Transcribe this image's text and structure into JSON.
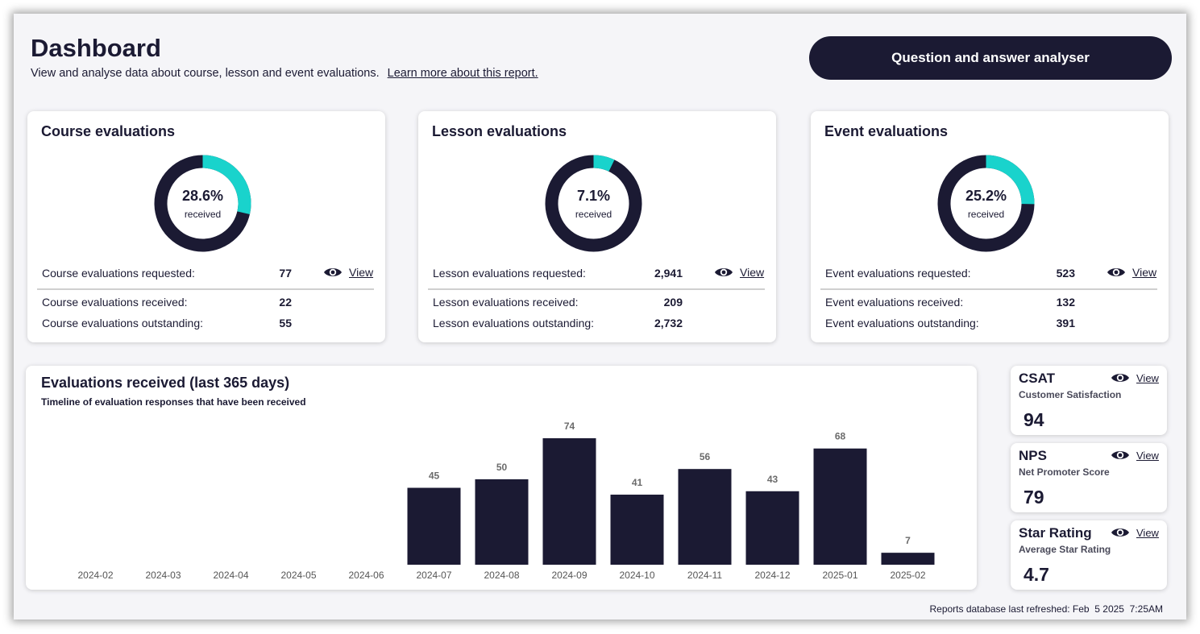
{
  "header": {
    "title": "Dashboard",
    "subtitle": "View and analyse data about course, lesson and event evaluations.",
    "learn_more": "Learn more about this report.",
    "qa_button": "Question and answer analyser"
  },
  "colors": {
    "navy": "#1b1a33",
    "accent": "#19d3cc"
  },
  "eval_cards": [
    {
      "title": "Course evaluations",
      "percent": "28.6%",
      "received_label": "received",
      "fraction": 0.286,
      "requested_label": "Course evaluations requested:",
      "requested": "77",
      "received_row_label": "Course evaluations received:",
      "received": "22",
      "outstanding_label": "Course evaluations outstanding:",
      "outstanding": "55",
      "view": "View"
    },
    {
      "title": "Lesson evaluations",
      "percent": "7.1%",
      "received_label": "received",
      "fraction": 0.071,
      "requested_label": "Lesson evaluations requested:",
      "requested": "2,941",
      "received_row_label": "Lesson evaluations received:",
      "received": "209",
      "outstanding_label": "Lesson evaluations outstanding:",
      "outstanding": "2,732",
      "view": "View"
    },
    {
      "title": "Event evaluations",
      "percent": "25.2%",
      "received_label": "received",
      "fraction": 0.252,
      "requested_label": "Event evaluations requested:",
      "requested": "523",
      "received_row_label": "Event evaluations received:",
      "received": "132",
      "outstanding_label": "Event evaluations outstanding:",
      "outstanding": "391",
      "view": "View"
    }
  ],
  "chart": {
    "title": "Evaluations received (last 365 days)",
    "subtitle": "Timeline of evaluation responses that have been received"
  },
  "chart_data": {
    "type": "bar",
    "categories": [
      "2024-02",
      "2024-03",
      "2024-04",
      "2024-05",
      "2024-06",
      "2024-07",
      "2024-08",
      "2024-09",
      "2024-10",
      "2024-11",
      "2024-12",
      "2025-01",
      "2025-02"
    ],
    "values": [
      0,
      0,
      0,
      0,
      0,
      45,
      50,
      74,
      41,
      56,
      43,
      68,
      7
    ],
    "labels": [
      "",
      "",
      "",
      "",
      "",
      "45",
      "50",
      "74",
      "41",
      "56",
      "43",
      "68",
      "7"
    ],
    "title": "Evaluations received (last 365 days)",
    "subtitle": "Timeline of evaluation responses that have been received",
    "xlabel": "",
    "ylabel": "",
    "ylim": [
      0,
      74
    ],
    "grid": false,
    "bar_color": "#1b1a33"
  },
  "metrics": [
    {
      "name": "CSAT",
      "desc": "Customer Satisfaction",
      "value": "94",
      "view": "View"
    },
    {
      "name": "NPS",
      "desc": "Net Promoter Score",
      "value": "79",
      "view": "View"
    },
    {
      "name": "Star Rating",
      "desc": "Average Star Rating",
      "value": "4.7",
      "view": "View"
    }
  ],
  "footer": {
    "refreshed": "Reports database last refreshed: Feb  5 2025  7:25AM"
  }
}
